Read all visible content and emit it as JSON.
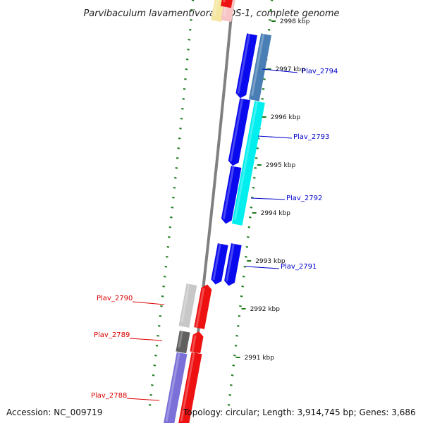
{
  "title": "Parvibaculum lavamentivorans DS-1, complete genome",
  "footer": {
    "accession": "Accession: NC_009719",
    "topology": "Topology: circular; Length: 3,914,745 bp; Genes: 3,686"
  },
  "colors": {
    "forward_label": "#0000cc",
    "reverse_label": "#dd0000",
    "backbone": "#808080",
    "tick": "#1a7a1a",
    "blue": "#0a0aee",
    "red": "#ee1111",
    "cyan": "#00eeee",
    "steelblue": "#4a7fb5",
    "grey": "#c8c8c8",
    "darkgrey": "#606060",
    "slateblue": "#7a70d8",
    "yellow": "#f5e6a0",
    "pink": "#f7c5c5"
  },
  "ticks": [
    {
      "kbp": 2998,
      "label": "2998 kbp"
    },
    {
      "kbp": 2997,
      "label": "2997 kbp"
    },
    {
      "kbp": 2996,
      "label": "2996 kbp"
    },
    {
      "kbp": 2995,
      "label": "2995 kbp"
    },
    {
      "kbp": 2994,
      "label": "2994 kbp"
    },
    {
      "kbp": 2993,
      "label": "2993 kbp"
    },
    {
      "kbp": 2992,
      "label": "2992 kbp"
    },
    {
      "kbp": 2991,
      "label": "2991 kbp"
    }
  ],
  "gene_labels": [
    {
      "name": "Plav_2794",
      "strand": "+"
    },
    {
      "name": "Plav_2793",
      "strand": "+"
    },
    {
      "name": "Plav_2792",
      "strand": "+"
    },
    {
      "name": "Plav_2791",
      "strand": "+"
    },
    {
      "name": "Plav_2790",
      "strand": "-"
    },
    {
      "name": "Plav_2789",
      "strand": "-"
    },
    {
      "name": "Plav_2788",
      "strand": "-"
    }
  ]
}
